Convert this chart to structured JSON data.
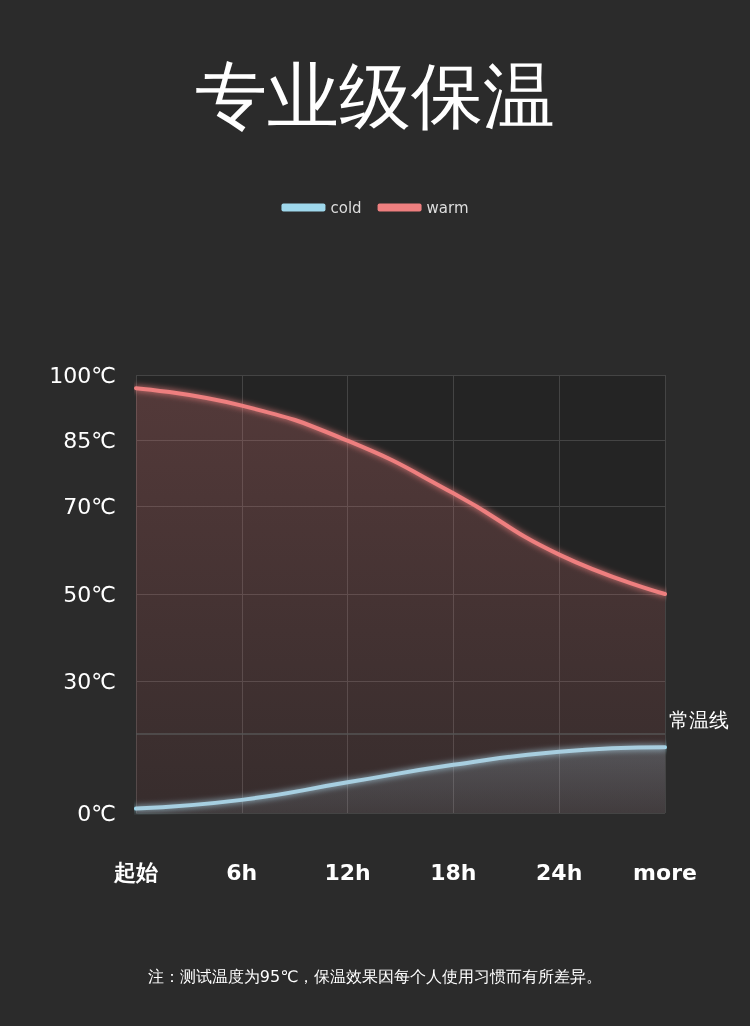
{
  "chart_data": {
    "type": "area",
    "title": "专业级保温",
    "categories": [
      "起始",
      "6h",
      "12h",
      "18h",
      "24h",
      "more"
    ],
    "series": [
      {
        "name": "cold",
        "color": "#9fd8ec",
        "values": [
          1,
          3,
          7,
          11,
          14,
          15
        ]
      },
      {
        "name": "warm",
        "color": "#ee7f7f",
        "values": [
          97,
          93,
          85,
          73,
          59,
          50
        ]
      }
    ],
    "ylim": [
      0,
      100
    ],
    "yticks": [
      {
        "value": 0,
        "label": "0℃"
      },
      {
        "value": 30,
        "label": "30℃"
      },
      {
        "value": 50,
        "label": "50℃"
      },
      {
        "value": 70,
        "label": "70℃"
      },
      {
        "value": 85,
        "label": "85℃"
      },
      {
        "value": 100,
        "label": "100℃"
      }
    ],
    "ref_lines": [
      {
        "axis": "y",
        "value": 18,
        "label": "常温线",
        "color": "#555555"
      }
    ],
    "grid": true,
    "legend": "top",
    "marker": "none",
    "line_style": "solid",
    "annotations": [
      "注：测试温度为95℃，保温效果因每个人使用习惯而有所差异。"
    ]
  }
}
